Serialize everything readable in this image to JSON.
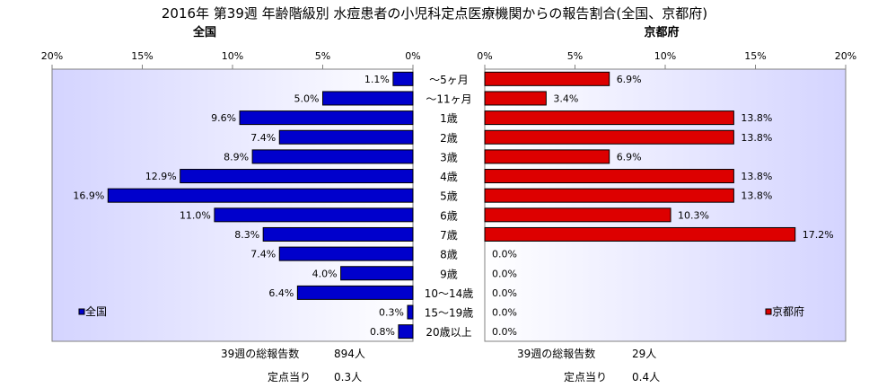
{
  "title": "2016年 第39週 年齢階級別 水痘患者の小児科定点医療機関からの報告割合(全国、京都府)",
  "colors": {
    "national": "#0000cc",
    "kyoto": "#dd0000",
    "plot_bg": "#ccccff"
  },
  "chart_data": [
    {
      "type": "bar",
      "orientation": "horizontal",
      "direction": "right-to-left",
      "title": "全国",
      "categories": [
        "～5ヶ月",
        "～11ヶ月",
        "1歳",
        "2歳",
        "3歳",
        "4歳",
        "5歳",
        "6歳",
        "7歳",
        "8歳",
        "9歳",
        "10～14歳",
        "15～19歳",
        "20歳以上"
      ],
      "series": [
        {
          "name": "全国",
          "values": [
            1.1,
            5.0,
            9.6,
            7.4,
            8.9,
            12.9,
            16.9,
            11.0,
            8.3,
            7.4,
            4.0,
            6.4,
            0.3,
            0.8
          ],
          "labels": [
            "1.1%",
            "5.0%",
            "9.6%",
            "7.4%",
            "8.9%",
            "12.9%",
            "16.9%",
            "11.0%",
            "8.3%",
            "7.4%",
            "4.0%",
            "6.4%",
            "0.3%",
            "0.8%"
          ]
        }
      ],
      "xlim": [
        0,
        20
      ],
      "xticks": [
        "0%",
        "5%",
        "10%",
        "15%",
        "20%"
      ],
      "legend": "bottom-left"
    },
    {
      "type": "bar",
      "orientation": "horizontal",
      "direction": "left-to-right",
      "title": "京都府",
      "categories": [
        "～5ヶ月",
        "～11ヶ月",
        "1歳",
        "2歳",
        "3歳",
        "4歳",
        "5歳",
        "6歳",
        "7歳",
        "8歳",
        "9歳",
        "10～14歳",
        "15～19歳",
        "20歳以上"
      ],
      "series": [
        {
          "name": "京都府",
          "values": [
            6.9,
            3.4,
            13.8,
            13.8,
            6.9,
            13.8,
            13.8,
            10.3,
            17.2,
            0.0,
            0.0,
            0.0,
            0.0,
            0.0
          ],
          "labels": [
            "6.9%",
            "3.4%",
            "13.8%",
            "13.8%",
            "6.9%",
            "13.8%",
            "13.8%",
            "10.3%",
            "17.2%",
            "0.0%",
            "0.0%",
            "0.0%",
            "0.0%",
            "0.0%"
          ]
        }
      ],
      "xlim": [
        0,
        20
      ],
      "xticks": [
        "0%",
        "5%",
        "10%",
        "15%",
        "20%"
      ],
      "legend": "bottom-right"
    }
  ],
  "footer": {
    "national": {
      "total_label": "39週の総報告数",
      "total_value": "894人",
      "per_label": "定点当り",
      "per_value": "0.3人"
    },
    "kyoto": {
      "total_label": "39週の総報告数",
      "total_value": "29人",
      "per_label": "定点当り",
      "per_value": "0.4人"
    }
  }
}
